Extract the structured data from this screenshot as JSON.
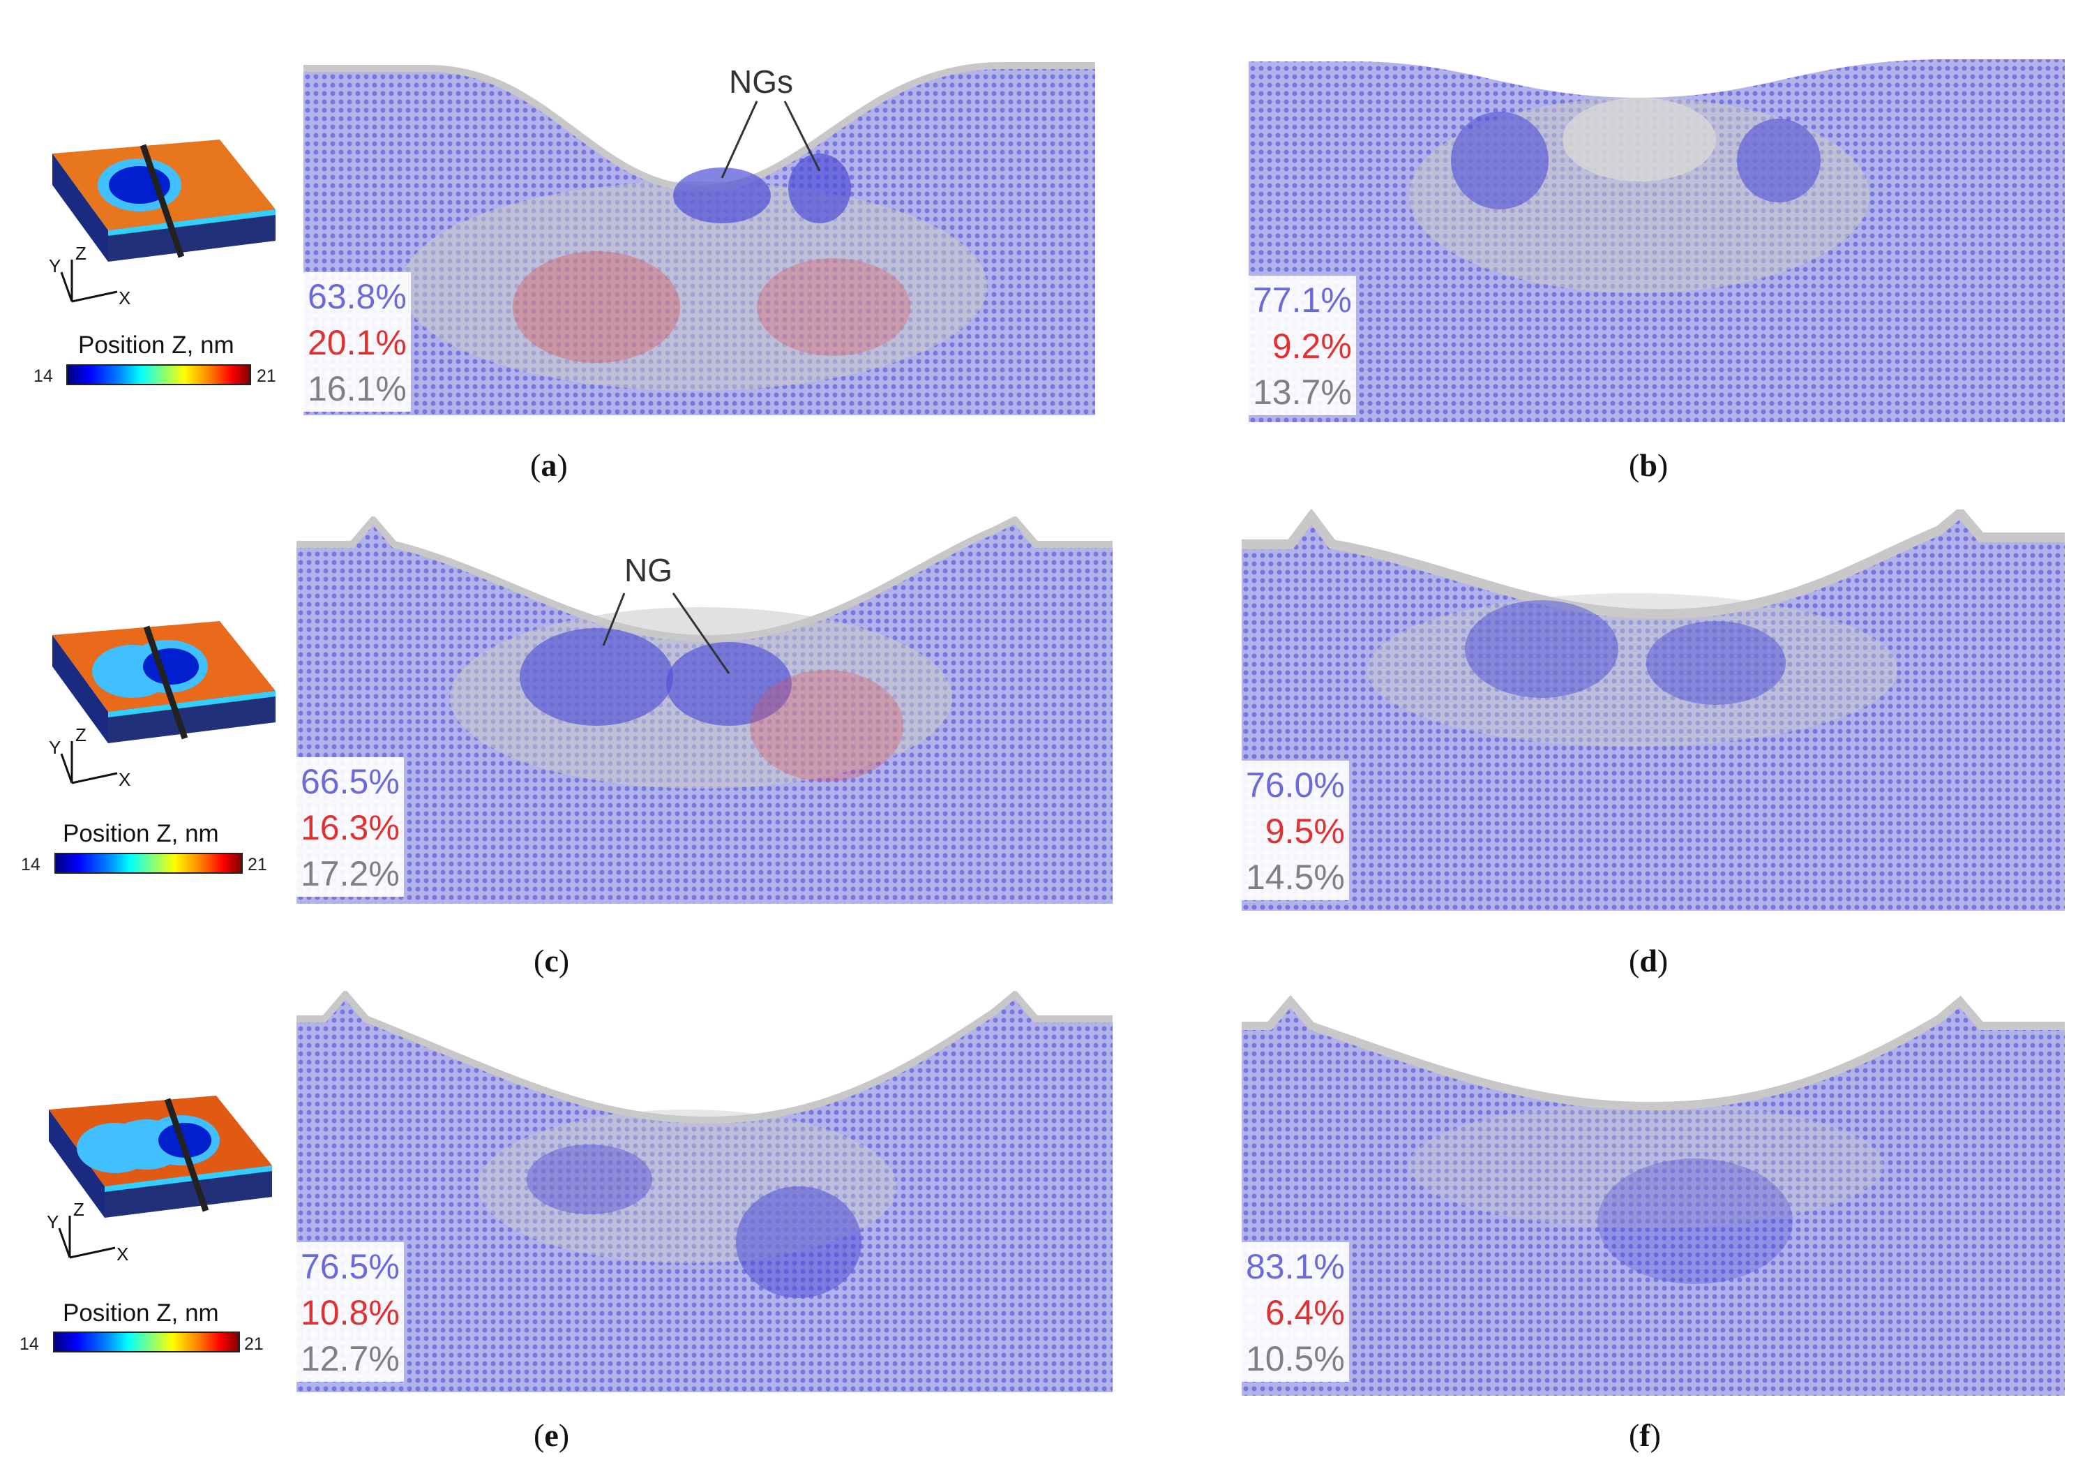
{
  "colorbar": {
    "title": "Position Z, nm",
    "min": "14",
    "max": "21"
  },
  "axes": {
    "x": "X",
    "y": "Y",
    "z": "Z"
  },
  "panels": [
    {
      "id": "a",
      "fcc": "63.8%",
      "hcp": "20.1%",
      "other": "16.1%",
      "annotation": "NGs",
      "tracks": 1
    },
    {
      "id": "b",
      "fcc": "77.1%",
      "hcp": "9.2%",
      "other": "13.7%"
    },
    {
      "id": "c",
      "fcc": "66.5%",
      "hcp": "16.3%",
      "other": "17.2%",
      "annotation": "NG",
      "tracks": 2
    },
    {
      "id": "d",
      "fcc": "76.0%",
      "hcp": "9.5%",
      "other": "14.5%"
    },
    {
      "id": "e",
      "fcc": "76.5%",
      "hcp": "10.8%",
      "other": "12.7%",
      "tracks": 3
    },
    {
      "id": "f",
      "fcc": "83.1%",
      "hcp": "6.4%",
      "other": "10.5%"
    }
  ],
  "colors": {
    "fcc": "#6a6ad8",
    "hcp": "#e03030",
    "other": "#808080",
    "matrix": "#9a9ae6"
  }
}
